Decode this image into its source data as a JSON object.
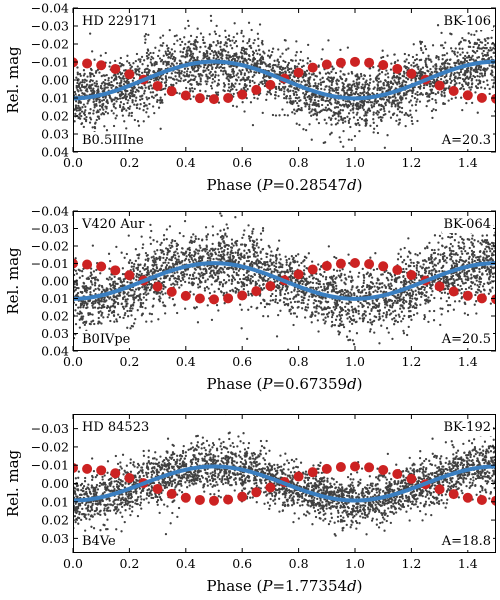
{
  "chart_data": [
    {
      "type": "scatter",
      "star": "HD 229171",
      "survey_id": "BK-106",
      "spectral_type": "B0.5IIIne",
      "amplitude_label": "A=20.3",
      "xlabel_prefix": "Phase (",
      "xlabel_var": "P",
      "xlabel_value": "=0.28547",
      "xlabel_unit": "d",
      "xlabel_suffix": ")",
      "ylabel": "Rel. mag",
      "xlim": [
        0,
        1.5
      ],
      "ylim": [
        0.04,
        -0.04
      ],
      "x_ticks": [
        "0.0",
        "0.2",
        "0.4",
        "0.6",
        "0.8",
        "1.0",
        "1.2",
        "1.4"
      ],
      "y_ticks": [
        "−0.04",
        "−0.03",
        "−0.02",
        "−0.01",
        "0.00",
        "0.01",
        "0.02",
        "0.03",
        "0.04"
      ],
      "y_tick_values": [
        -0.04,
        -0.03,
        -0.02,
        -0.01,
        0.0,
        0.01,
        0.02,
        0.03,
        0.04
      ],
      "fit_amplitude": 0.0102,
      "fit_min_phase": 0.5,
      "points_scatter_sigma": 0.0085,
      "binned_x": [
        0.0,
        0.05,
        0.1,
        0.15,
        0.2,
        0.25,
        0.3,
        0.35,
        0.4,
        0.45,
        0.5,
        0.55,
        0.6,
        0.65,
        0.7,
        0.75,
        0.8,
        0.85,
        0.9,
        0.95,
        1.0,
        1.05,
        1.1,
        1.15,
        1.2,
        1.25,
        1.3,
        1.35,
        1.4,
        1.45,
        1.5
      ],
      "binned_y": [
        -0.0098,
        -0.0092,
        -0.0082,
        -0.0061,
        -0.0032,
        -0.0002,
        0.0033,
        0.0062,
        0.0086,
        0.0101,
        0.0106,
        0.01,
        0.0081,
        0.0055,
        0.0027,
        -0.0008,
        -0.0041,
        -0.0069,
        -0.0086,
        -0.0096,
        -0.0101,
        -0.0096,
        -0.0083,
        -0.0062,
        -0.0035,
        -0.0002,
        0.0031,
        0.0061,
        0.0085,
        0.0099,
        0.0104
      ]
    },
    {
      "type": "scatter",
      "star": "V420 Aur",
      "survey_id": "BK-064",
      "spectral_type": "B0IVpe",
      "amplitude_label": "A=20.5",
      "xlabel_prefix": "Phase (",
      "xlabel_var": "P",
      "xlabel_value": "=0.67359",
      "xlabel_unit": "d",
      "xlabel_suffix": ")",
      "ylabel": "Rel. mag",
      "xlim": [
        0,
        1.5
      ],
      "ylim": [
        0.04,
        -0.04
      ],
      "x_ticks": [
        "0.0",
        "0.2",
        "0.4",
        "0.6",
        "0.8",
        "1.0",
        "1.2",
        "1.4"
      ],
      "y_ticks": [
        "−0.04",
        "−0.03",
        "−0.02",
        "−0.01",
        "0.00",
        "0.01",
        "0.02",
        "0.03",
        "0.04"
      ],
      "y_tick_values": [
        -0.04,
        -0.03,
        -0.02,
        -0.01,
        0.0,
        0.01,
        0.02,
        0.03,
        0.04
      ],
      "fit_amplitude": 0.0102,
      "fit_min_phase": 0.5,
      "points_scatter_sigma": 0.0095,
      "binned_x": [
        0.0,
        0.05,
        0.1,
        0.15,
        0.2,
        0.25,
        0.3,
        0.35,
        0.4,
        0.45,
        0.5,
        0.55,
        0.6,
        0.65,
        0.7,
        0.75,
        0.8,
        0.85,
        0.9,
        0.95,
        1.0,
        1.05,
        1.1,
        1.15,
        1.2,
        1.25,
        1.3,
        1.35,
        1.4,
        1.45,
        1.5
      ],
      "binned_y": [
        -0.01,
        -0.0094,
        -0.0083,
        -0.0061,
        -0.0033,
        -0.0003,
        0.0032,
        0.0062,
        0.0085,
        0.01,
        0.0105,
        0.0099,
        0.0083,
        0.0058,
        0.0029,
        -0.0004,
        -0.0038,
        -0.0066,
        -0.0086,
        -0.0099,
        -0.0103,
        -0.0097,
        -0.0084,
        -0.0063,
        -0.0034,
        -0.0002,
        0.0031,
        0.006,
        0.0084,
        0.0099,
        0.0104
      ]
    },
    {
      "type": "scatter",
      "star": "HD 84523",
      "survey_id": "BK-192",
      "spectral_type": "B4Ve",
      "amplitude_label": "A=18.8",
      "xlabel_prefix": "Phase (",
      "xlabel_var": "P",
      "xlabel_value": "=1.77354",
      "xlabel_unit": "d",
      "xlabel_suffix": ")",
      "ylabel": "Rel. mag",
      "xlim": [
        0,
        1.5
      ],
      "ylim": [
        0.038,
        -0.038
      ],
      "x_ticks": [
        "0.0",
        "0.2",
        "0.4",
        "0.6",
        "0.8",
        "1.0",
        "1.2",
        "1.4"
      ],
      "y_ticks": [
        "−0.03",
        "−0.02",
        "−0.01",
        "0.00",
        "0.01",
        "0.02",
        "0.03"
      ],
      "y_tick_values": [
        -0.03,
        -0.02,
        -0.01,
        0.0,
        0.01,
        0.02,
        0.03
      ],
      "fit_amplitude": 0.0093,
      "fit_min_phase": 0.5,
      "points_scatter_sigma": 0.0068,
      "binned_x": [
        0.0,
        0.05,
        0.1,
        0.15,
        0.2,
        0.25,
        0.3,
        0.35,
        0.4,
        0.45,
        0.5,
        0.55,
        0.6,
        0.65,
        0.7,
        0.75,
        0.8,
        0.85,
        0.9,
        0.95,
        1.0,
        1.05,
        1.1,
        1.15,
        1.2,
        1.25,
        1.3,
        1.35,
        1.4,
        1.45,
        1.5
      ],
      "binned_y": [
        -0.0085,
        -0.008,
        -0.0072,
        -0.0056,
        -0.003,
        -0.0002,
        0.003,
        0.0057,
        0.0078,
        0.009,
        0.0094,
        0.0088,
        0.0072,
        0.0048,
        0.0022,
        -0.0008,
        -0.0038,
        -0.0062,
        -0.008,
        -0.009,
        -0.0093,
        -0.0088,
        -0.0074,
        -0.0052,
        -0.0025,
        0.0004,
        0.0032,
        0.0058,
        0.0078,
        0.009,
        0.0094
      ]
    }
  ],
  "colors": {
    "points": "#000000",
    "binned": "#cc2222",
    "fit": "#3a7fc1"
  }
}
